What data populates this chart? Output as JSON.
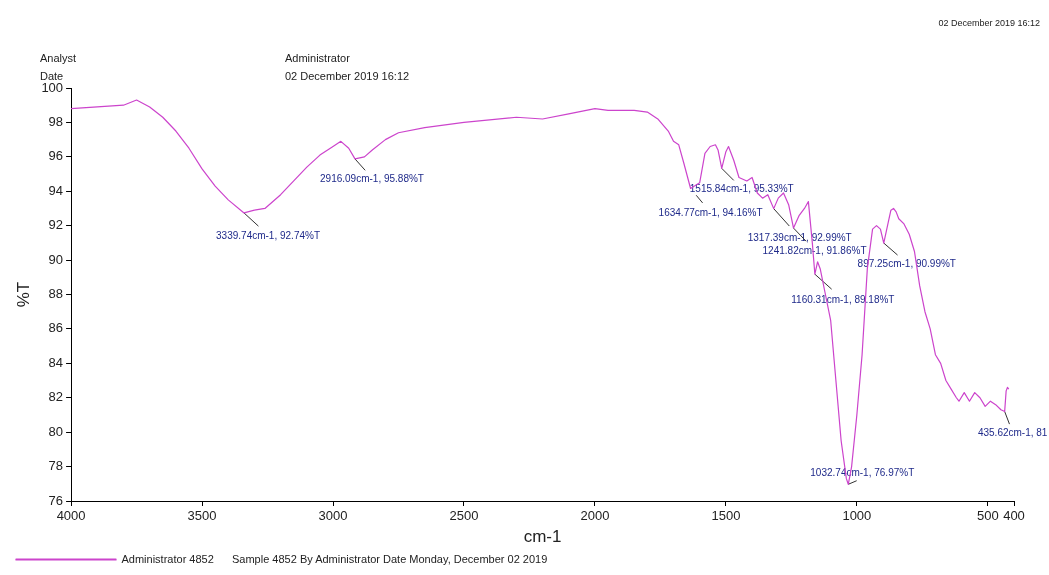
{
  "chart_data": {
    "type": "line",
    "xlabel": "cm-1",
    "ylabel": "%T",
    "xlim": [
      4000,
      400
    ],
    "xticks": [
      4000,
      3500,
      3000,
      2500,
      2000,
      1500,
      1000,
      500,
      400
    ],
    "ylim": [
      76,
      100
    ],
    "yticks": [
      76,
      78,
      80,
      82,
      84,
      86,
      88,
      90,
      92,
      94,
      96,
      98,
      100
    ],
    "grid": false,
    "legend": "bottom",
    "marker": "none",
    "line_style": "solid",
    "series": [
      {
        "name": "Administrator 4852",
        "color": "#cc44cc",
        "x": [
          4000,
          3900,
          3800,
          3750,
          3700,
          3650,
          3600,
          3550,
          3500,
          3450,
          3400,
          3339.74,
          3300,
          3260,
          3200,
          3150,
          3100,
          3050,
          3000,
          2970,
          2940,
          2916.09,
          2880,
          2850,
          2800,
          2750,
          2650,
          2500,
          2300,
          2200,
          2100,
          2000,
          1950,
          1850,
          1800,
          1760,
          1720,
          1700,
          1680,
          1660,
          1634.77,
          1620,
          1600,
          1580,
          1560,
          1540,
          1530,
          1515.84,
          1500,
          1490,
          1470,
          1450,
          1420,
          1400,
          1380,
          1360,
          1340,
          1317.39,
          1300,
          1280,
          1260,
          1241.82,
          1220,
          1200,
          1185,
          1170,
          1160.31,
          1150,
          1140,
          1120,
          1100,
          1080,
          1060,
          1040,
          1032.74,
          1020,
          1000,
          980,
          960,
          940,
          925,
          910,
          897.25,
          880,
          870,
          860,
          850,
          840,
          820,
          800,
          780,
          760,
          740,
          720,
          700,
          680,
          660,
          640,
          620,
          610,
          590,
          570,
          550,
          530,
          510,
          490,
          470,
          450,
          435.62,
          430,
          425,
          420
        ],
        "values": [
          98.8,
          98.9,
          99.0,
          99.3,
          98.9,
          98.3,
          97.5,
          96.5,
          95.3,
          94.3,
          93.5,
          92.74,
          92.9,
          93.0,
          93.8,
          94.6,
          95.4,
          96.1,
          96.6,
          96.9,
          96.5,
          95.88,
          96.0,
          96.4,
          97.0,
          97.4,
          97.7,
          98.0,
          98.3,
          98.2,
          98.5,
          98.8,
          98.7,
          98.7,
          98.6,
          98.2,
          97.5,
          96.9,
          96.7,
          95.6,
          94.16,
          94.3,
          94.5,
          96.2,
          96.6,
          96.7,
          96.4,
          95.33,
          96.3,
          96.6,
          95.8,
          94.8,
          94.6,
          94.8,
          93.9,
          93.6,
          93.8,
          92.99,
          93.6,
          93.9,
          93.2,
          91.86,
          92.6,
          93.0,
          93.4,
          91.0,
          89.18,
          89.9,
          89.5,
          88.0,
          86.5,
          83.0,
          79.5,
          77.3,
          76.97,
          78.0,
          81.0,
          84.5,
          89.5,
          91.8,
          92.0,
          91.8,
          90.99,
          92.2,
          92.9,
          93.0,
          92.8,
          92.4,
          92.1,
          91.5,
          90.5,
          88.5,
          87.0,
          86.0,
          84.5,
          84.0,
          83.0,
          82.5,
          82.0,
          81.8,
          82.3,
          81.8,
          82.3,
          82.0,
          81.5,
          81.8,
          81.6,
          81.3,
          81.2,
          82.4,
          82.6,
          82.5
        ]
      }
    ],
    "annotations": [
      "Analyst",
      "Administrator",
      "Date",
      "02 December 2019 16:12",
      "02 December 2019 16:12",
      "Sample 4852 By Administrator Date Monday, December 02 2019",
      {
        "text": "3339.74cm-1, 92.74%T",
        "x": 3339.74,
        "y": 92.74
      },
      {
        "text": "2916.09cm-1, 95.88%T",
        "x": 2916.09,
        "y": 95.88
      },
      {
        "text": "1634.77cm-1, 94.16%T",
        "x": 1634.77,
        "y": 94.16
      },
      {
        "text": "1515.84cm-1, 95.33%T",
        "x": 1515.84,
        "y": 95.33
      },
      {
        "text": "1317.39cm-1, 92.99%T",
        "x": 1317.39,
        "y": 92.99
      },
      {
        "text": "1241.82cm-1, 91.86%T",
        "x": 1241.82,
        "y": 91.86
      },
      {
        "text": "1160.31cm-1, 89.18%T",
        "x": 1160.31,
        "y": 89.18
      },
      {
        "text": "1032.74cm-1, 76.97%T",
        "x": 1032.74,
        "y": 76.97
      },
      {
        "text": "897.25cm-1, 90.99%T",
        "x": 897.25,
        "y": 90.99
      },
      {
        "text": "435.62cm-1, 81",
        "x": 435.62,
        "y": 81.2
      }
    ]
  }
}
